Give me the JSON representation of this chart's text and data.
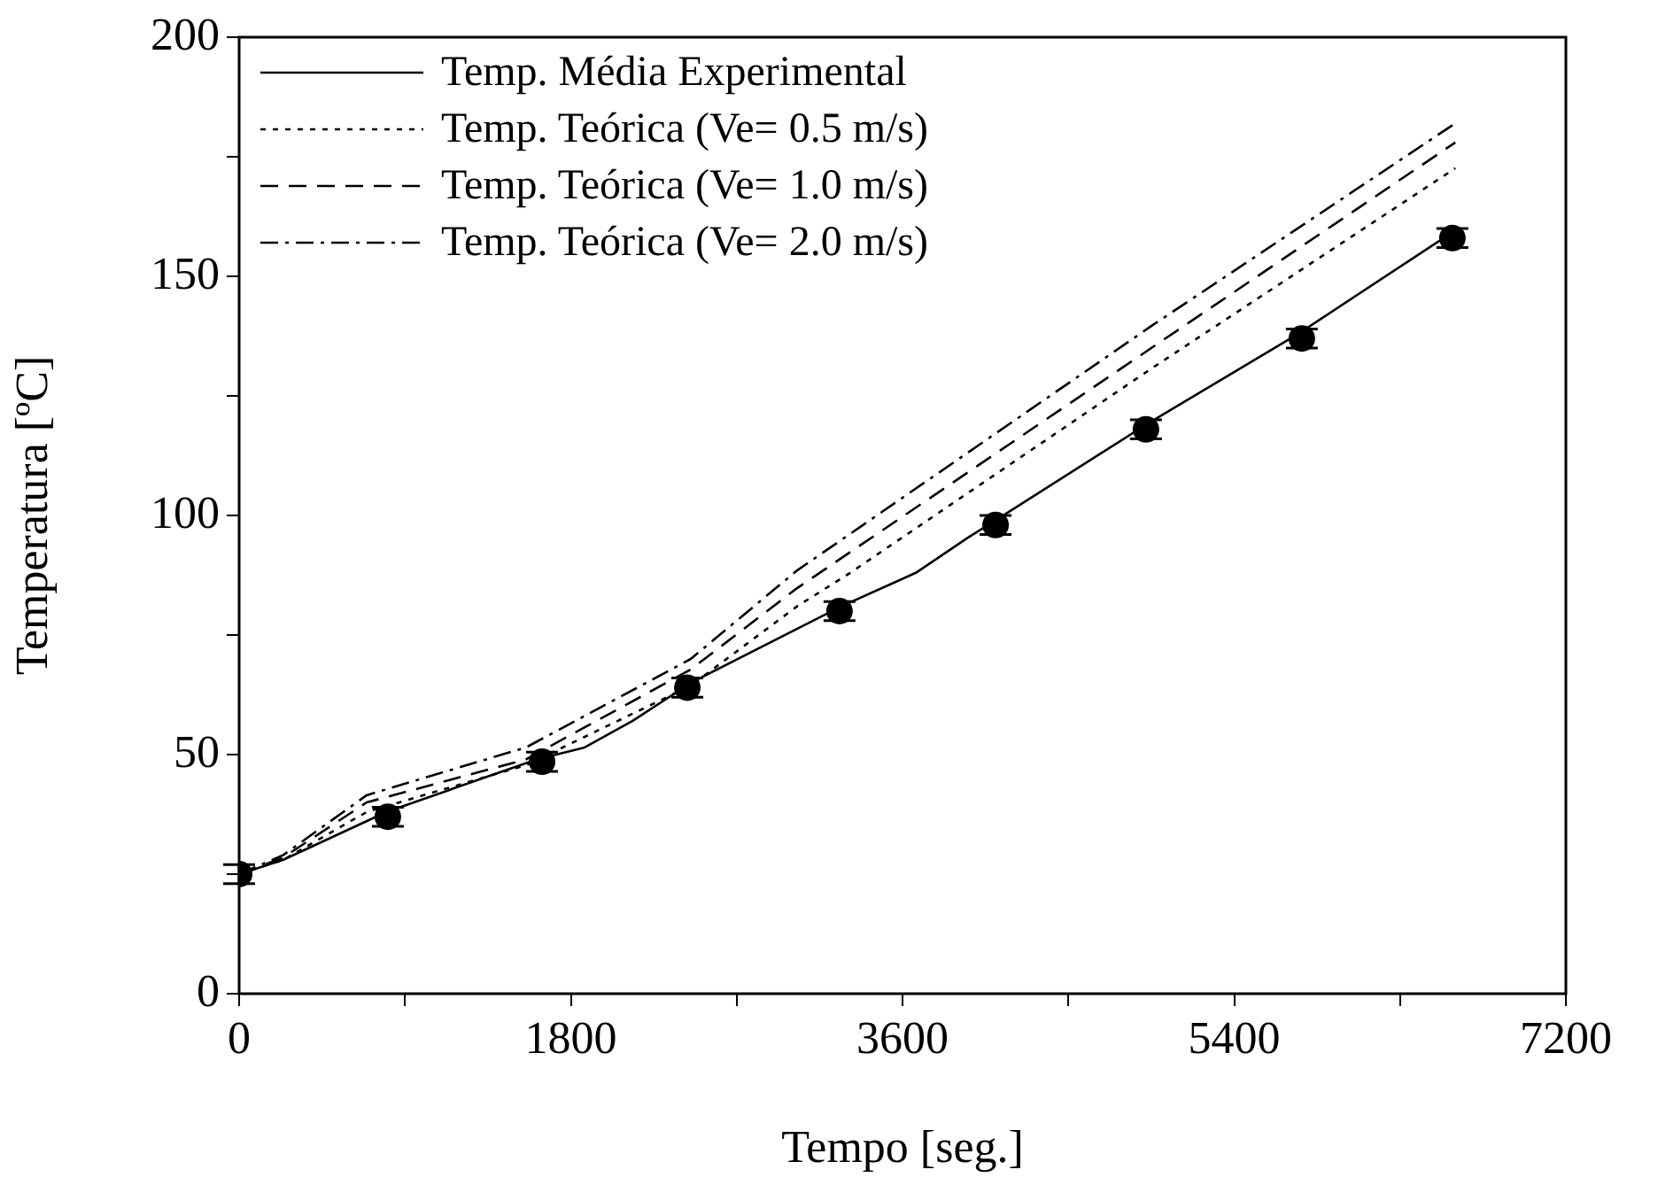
{
  "chart_data": {
    "type": "line",
    "xlabel": "Tempo [seg.]",
    "ylabel": "Temperatura [ºC]",
    "xlim": [
      0,
      7200
    ],
    "xticks": [
      0,
      {
        "value": 900,
        "label": null
      },
      1800,
      {
        "value": 2700,
        "label": null
      },
      3600,
      {
        "value": 4500,
        "label": null
      },
      5400,
      {
        "value": 6300,
        "label": null
      },
      7200
    ],
    "ylim": [
      0,
      200
    ],
    "yticks": [
      0,
      {
        "value": 25,
        "label": null
      },
      50,
      {
        "value": 75,
        "label": null
      },
      100,
      {
        "value": 125,
        "label": null
      },
      150,
      {
        "value": 175,
        "label": null
      },
      200
    ],
    "legend": "top left",
    "series": [
      {
        "name": "Temp. Média Experimental",
        "line_style": "solid",
        "marker": "none",
        "color": "#000000",
        "x": [
          0,
          240,
          800,
          1615,
          1875,
          2134,
          2451,
          3268,
          3672,
          3960,
          4085,
          4922,
          5748,
          6556
        ],
        "values": [
          25,
          28,
          38,
          49,
          51.5,
          57,
          65,
          81,
          88,
          95.5,
          98.5,
          119,
          138,
          158.5
        ]
      },
      {
        "name": "Temp. Teórica (Ve= 0.5 m/s)",
        "line_style": "dotted",
        "marker": "none",
        "color": "#000000",
        "x": [
          0,
          240,
          692,
          1557,
          2451,
          3028,
          3316,
          4950,
          6600
        ],
        "values": [
          25,
          28,
          38,
          47.8,
          64.4,
          81,
          88,
          130.7,
          172.6
        ]
      },
      {
        "name": "Temp. Teórica (Ve= 1.0 m/s)",
        "line_style": "dashed",
        "marker": "none",
        "color": "#000000",
        "x": [
          0,
          240,
          692,
          1557,
          2451,
          3028,
          4950,
          6600
        ],
        "values": [
          25,
          28.5,
          40,
          49,
          67.8,
          84.8,
          135,
          178
        ]
      },
      {
        "name": "Temp. Teórica (Ve= 2.0 m/s)",
        "line_style": "dashdot",
        "marker": "none",
        "color": "#000000",
        "x": [
          0,
          240,
          692,
          1557,
          2451,
          3028,
          4950,
          6600
        ],
        "values": [
          25,
          29,
          41.5,
          51.5,
          70,
          88.5,
          139.6,
          182
        ]
      },
      {
        "type": "scatter",
        "marker": "circle",
        "color": "#000000",
        "x": [
          0,
          807,
          1644,
          2432,
          3258,
          4105,
          4921,
          5767,
          6584
        ],
        "values": [
          25,
          37,
          48.5,
          64,
          80,
          98,
          118,
          137,
          158
        ],
        "errors": [
          2,
          2,
          2,
          2,
          2,
          2,
          2,
          2,
          2
        ]
      }
    ]
  }
}
